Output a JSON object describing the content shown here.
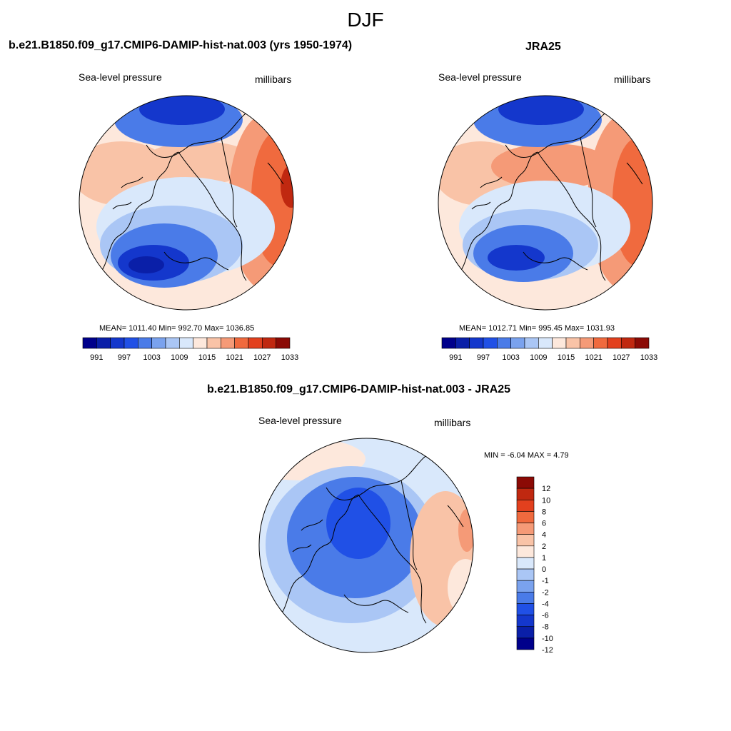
{
  "title": "DJF",
  "panels": [
    {
      "title": "b.e21.B1850.f09_g17.CMIP6-DAMIP-hist-nat.003 (yrs 1950-1974)",
      "left_label": "Sea-level pressure",
      "right_label": "millibars",
      "stats": "MEAN= 1011.40  Min= 992.70  Max= 1036.85"
    },
    {
      "title": "JRA25",
      "left_label": "Sea-level pressure",
      "right_label": "millibars",
      "stats": "MEAN= 1012.71  Min= 995.45  Max= 1031.93"
    },
    {
      "title": "b.e21.B1850.f09_g17.CMIP6-DAMIP-hist-nat.003 - JRA25",
      "left_label": "Sea-level pressure",
      "right_label": "millibars",
      "stats": "MIN =  -6.04 MAX =   4.79"
    }
  ],
  "colorbar_abs": {
    "colors": [
      "#00008b",
      "#0a1fa8",
      "#1437cc",
      "#2050e6",
      "#4a7be8",
      "#7aa2ee",
      "#aac6f5",
      "#d9e8fb",
      "#fde8dc",
      "#f9c3a7",
      "#f59a77",
      "#f06a3e",
      "#e2401e",
      "#c02810",
      "#8b0a05"
    ],
    "labels": [
      "991",
      "997",
      "1003",
      "1009",
      "1015",
      "1021",
      "1027",
      "1033"
    ]
  },
  "colorbar_diff": {
    "colors": [
      "#00008b",
      "#0a1fa8",
      "#1437cc",
      "#2050e6",
      "#4a7be8",
      "#7aa2ee",
      "#aac6f5",
      "#d9e8fb",
      "#fde8dc",
      "#f9c3a7",
      "#f59a77",
      "#f06a3e",
      "#e2401e",
      "#c02810",
      "#8b0a05"
    ],
    "labels": [
      "12",
      "10",
      "8",
      "6",
      "4",
      "2",
      "1",
      "0",
      "-1",
      "-2",
      "-4",
      "-6",
      "-8",
      "-10",
      "-12"
    ]
  },
  "map_colors": {
    "deep_blue": "#1437cc",
    "mid_blue": "#4a7be8",
    "light_blue": "#aac6f5",
    "pale_blue": "#d9e8fb",
    "pale_red": "#fde8dc",
    "light_red": "#f9c3a7",
    "mid_red": "#f59a77",
    "red": "#f06a3e",
    "dark_red": "#c02810"
  }
}
